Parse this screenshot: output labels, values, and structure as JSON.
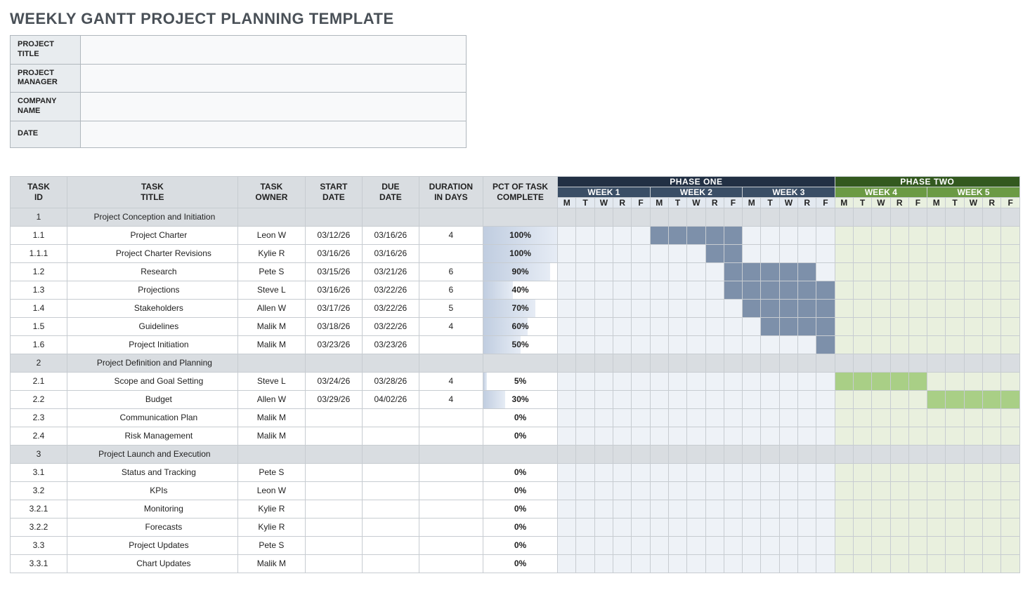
{
  "title": "WEEKLY GANTT PROJECT PLANNING TEMPLATE",
  "meta_labels": [
    "PROJECT TITLE",
    "PROJECT MANAGER",
    "COMPANY NAME",
    "DATE"
  ],
  "meta_values": [
    "",
    "",
    "",
    ""
  ],
  "columns": [
    "TASK ID",
    "TASK TITLE",
    "TASK OWNER",
    "START DATE",
    "DUE DATE",
    "DURATION IN DAYS",
    "PCT OF TASK COMPLETE"
  ],
  "phases": [
    {
      "label": "PHASE ONE",
      "weeks": 3,
      "bg": "#223044",
      "week_bg": "#3a4e66",
      "day_head_bg": "#e3e9f0",
      "idle": "#eef2f7",
      "bar": "#7d90aa",
      "bar_strong": "#6d80a0"
    },
    {
      "label": "PHASE TWO",
      "weeks": 2,
      "bg": "#33591f",
      "week_bg": "#6b9a44",
      "day_head_bg": "#e9f0e0",
      "idle": "#e9f0de",
      "bar": "#a9cf86",
      "bar_strong": "#9bc577"
    }
  ],
  "weeks": [
    "WEEK 1",
    "WEEK 2",
    "WEEK 3",
    "WEEK 4",
    "WEEK 5"
  ],
  "day_labels": [
    "M",
    "T",
    "W",
    "R",
    "F"
  ],
  "pct_bar_gradient": [
    "#c0cde0",
    "#e6ecf5"
  ],
  "rows": [
    {
      "id": "1",
      "title": "Project Conception and Initiation",
      "indent": 0,
      "group": true,
      "owner": "",
      "start": "",
      "due": "",
      "dur": "",
      "pct": "",
      "fill": []
    },
    {
      "id": "1.1",
      "title": "Project Charter",
      "indent": 1,
      "owner": "Leon W",
      "start": "03/12/26",
      "due": "03/16/26",
      "dur": "4",
      "pct": "100%",
      "fill": [
        5,
        6,
        7,
        8,
        9
      ]
    },
    {
      "id": "1.1.1",
      "title": "Project Charter Revisions",
      "indent": 2,
      "owner": "Kylie R",
      "start": "03/16/26",
      "due": "03/16/26",
      "dur": "",
      "pct": "100%",
      "fill": [
        8,
        9
      ]
    },
    {
      "id": "1.2",
      "title": "Research",
      "indent": 1,
      "owner": "Pete S",
      "start": "03/15/26",
      "due": "03/21/26",
      "dur": "6",
      "pct": "90%",
      "fill": [
        9,
        10,
        11,
        12,
        13
      ]
    },
    {
      "id": "1.3",
      "title": "Projections",
      "indent": 1,
      "owner": "Steve L",
      "start": "03/16/26",
      "due": "03/22/26",
      "dur": "6",
      "pct": "40%",
      "fill": [
        9,
        10,
        11,
        12,
        13,
        14
      ]
    },
    {
      "id": "1.4",
      "title": "Stakeholders",
      "indent": 1,
      "owner": "Allen W",
      "start": "03/17/26",
      "due": "03/22/26",
      "dur": "5",
      "pct": "70%",
      "fill": [
        10,
        11,
        12,
        13,
        14
      ]
    },
    {
      "id": "1.5",
      "title": "Guidelines",
      "indent": 1,
      "owner": "Malik M",
      "start": "03/18/26",
      "due": "03/22/26",
      "dur": "4",
      "pct": "60%",
      "fill": [
        11,
        12,
        13,
        14
      ]
    },
    {
      "id": "1.6",
      "title": "Project Initiation",
      "indent": 1,
      "owner": "Malik M",
      "start": "03/23/26",
      "due": "03/23/26",
      "dur": "",
      "pct": "50%",
      "fill": [
        14
      ]
    },
    {
      "id": "2",
      "title": "Project Definition and Planning",
      "indent": 0,
      "group": true,
      "owner": "",
      "start": "",
      "due": "",
      "dur": "",
      "pct": "",
      "fill": []
    },
    {
      "id": "2.1",
      "title": "Scope and Goal Setting",
      "indent": 1,
      "owner": "Steve L",
      "start": "03/24/26",
      "due": "03/28/26",
      "dur": "4",
      "pct": "5%",
      "fill": [
        15,
        16,
        17,
        18,
        19
      ]
    },
    {
      "id": "2.2",
      "title": "Budget",
      "indent": 1,
      "owner": "Allen W",
      "start": "03/29/26",
      "due": "04/02/26",
      "dur": "4",
      "pct": "30%",
      "fill": [
        20,
        21,
        22,
        23,
        24
      ]
    },
    {
      "id": "2.3",
      "title": "Communication Plan",
      "indent": 1,
      "owner": "Malik M",
      "start": "",
      "due": "",
      "dur": "",
      "pct": "0%",
      "fill": []
    },
    {
      "id": "2.4",
      "title": "Risk Management",
      "indent": 1,
      "owner": "Malik M",
      "start": "",
      "due": "",
      "dur": "",
      "pct": "0%",
      "fill": []
    },
    {
      "id": "3",
      "title": "Project Launch and Execution",
      "indent": 0,
      "group": true,
      "owner": "",
      "start": "",
      "due": "",
      "dur": "",
      "pct": "",
      "fill": []
    },
    {
      "id": "3.1",
      "title": "Status and Tracking",
      "indent": 1,
      "owner": "Pete S",
      "start": "",
      "due": "",
      "dur": "",
      "pct": "0%",
      "fill": []
    },
    {
      "id": "3.2",
      "title": "KPIs",
      "indent": 1,
      "owner": "Leon W",
      "start": "",
      "due": "",
      "dur": "",
      "pct": "0%",
      "fill": []
    },
    {
      "id": "3.2.1",
      "title": "Monitoring",
      "indent": 2,
      "owner": "Kylie R",
      "start": "",
      "due": "",
      "dur": "",
      "pct": "0%",
      "fill": []
    },
    {
      "id": "3.2.2",
      "title": "Forecasts",
      "indent": 2,
      "owner": "Kylie R",
      "start": "",
      "due": "",
      "dur": "",
      "pct": "0%",
      "fill": []
    },
    {
      "id": "3.3",
      "title": "Project Updates",
      "indent": 1,
      "owner": "Pete S",
      "start": "",
      "due": "",
      "dur": "",
      "pct": "0%",
      "fill": []
    },
    {
      "id": "3.3.1",
      "title": "Chart Updates",
      "indent": 2,
      "owner": "Malik M",
      "start": "",
      "due": "",
      "dur": "",
      "pct": "0%",
      "fill": []
    }
  ]
}
